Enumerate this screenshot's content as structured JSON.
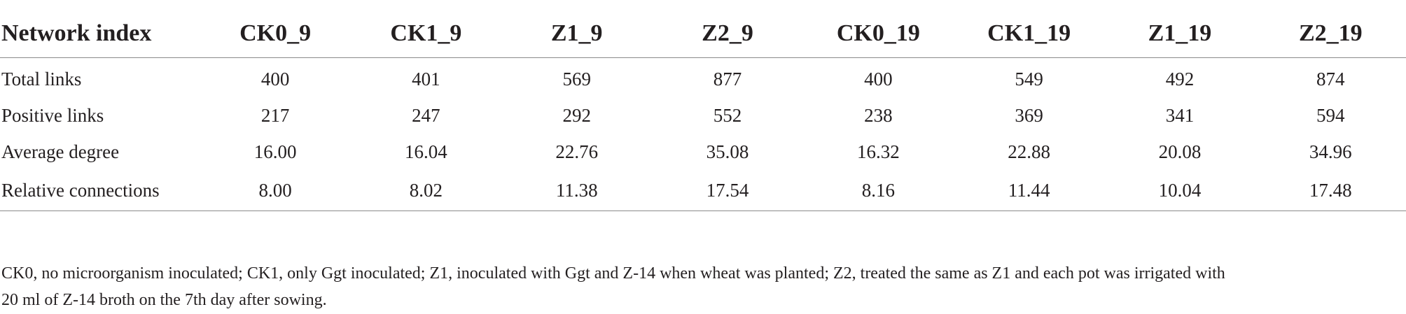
{
  "table": {
    "headers": [
      "Network index",
      "CK0_9",
      "CK1_9",
      "Z1_9",
      "Z2_9",
      "CK0_19",
      "CK1_19",
      "Z1_19",
      "Z2_19"
    ],
    "rows": [
      [
        "Total links",
        "400",
        "401",
        "569",
        "877",
        "400",
        "549",
        "492",
        "874"
      ],
      [
        "Positive links",
        "217",
        "247",
        "292",
        "552",
        "238",
        "369",
        "341",
        "594"
      ],
      [
        "Average degree",
        "16.00",
        "16.04",
        "22.76",
        "35.08",
        "16.32",
        "22.88",
        "20.08",
        "34.96"
      ],
      [
        "Relative connections",
        "8.00",
        "8.02",
        "11.38",
        "17.54",
        "8.16",
        "11.44",
        "10.04",
        "17.48"
      ]
    ]
  },
  "footnote": {
    "line1": "CK0, no microorganism inoculated; CK1, only Ggt inoculated; Z1, inoculated with Ggt and Z-14 when wheat was planted; Z2, treated the same as Z1 and each pot was irrigated with",
    "line2": "20 ml of Z-14 broth on the 7th day after sowing."
  },
  "chart_data": {
    "type": "table",
    "columns": [
      "Network index",
      "CK0_9",
      "CK1_9",
      "Z1_9",
      "Z2_9",
      "CK0_19",
      "CK1_19",
      "Z1_19",
      "Z2_19"
    ],
    "rows": [
      {
        "index": "Total links",
        "values": [
          400,
          401,
          569,
          877,
          400,
          549,
          492,
          874
        ]
      },
      {
        "index": "Positive links",
        "values": [
          217,
          247,
          292,
          552,
          238,
          369,
          341,
          594
        ]
      },
      {
        "index": "Average degree",
        "values": [
          16.0,
          16.04,
          22.76,
          35.08,
          16.32,
          22.88,
          20.08,
          34.96
        ]
      },
      {
        "index": "Relative connections",
        "values": [
          8.0,
          8.02,
          11.38,
          17.54,
          8.16,
          11.44,
          10.04,
          17.48
        ]
      }
    ]
  }
}
